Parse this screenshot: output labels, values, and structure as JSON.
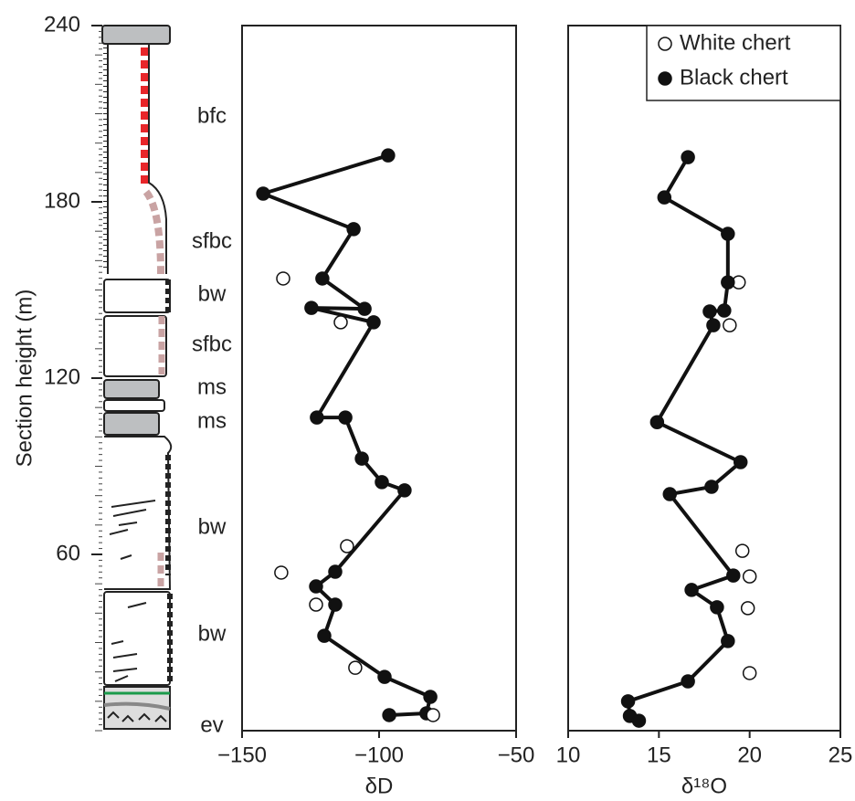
{
  "chart_data": [
    {
      "type": "line",
      "ylabel": "Section height (m)",
      "xlabel": "δD",
      "xlim": [
        -150,
        -50
      ],
      "xticks": [
        {
          "value": -150,
          "label": "−150"
        },
        {
          "value": -100,
          "label": "−100"
        },
        {
          "value": -50,
          "label": "−50"
        }
      ],
      "ylim": [
        0,
        240
      ],
      "yticks": [
        60,
        120,
        180,
        240
      ],
      "series": [
        {
          "color": "#111111",
          "marker": "filled",
          "line": true,
          "x": [
            -96.7,
            -142.3,
            -109.3,
            -120.7,
            -105.3,
            -124.7,
            -102,
            -122.7,
            -112.3,
            -106.3,
            -99,
            -90.7,
            -116,
            -123,
            -116,
            -120,
            -98,
            -81.3,
            -82.7,
            -96.3
          ],
          "y": [
            195.8,
            182.8,
            170.7,
            153.9,
            143.6,
            143.9,
            139,
            106.6,
            106.6,
            92.6,
            84.6,
            81.8,
            54.1,
            49.1,
            42.9,
            32.3,
            18.3,
            11.5,
            5.9,
            5.3
          ]
        },
        {
          "color": "#111111",
          "marker": "open",
          "line": false,
          "x": [
            -135,
            -114,
            -111.7,
            -135.7,
            -123,
            -108.7,
            -80.3
          ],
          "y": [
            153.9,
            139,
            62.8,
            53.8,
            42.9,
            21.4,
            5.3
          ]
        }
      ]
    },
    {
      "type": "line",
      "xlabel": "δ¹⁸O",
      "xlim": [
        10,
        25
      ],
      "xticks": [
        10,
        15,
        20,
        25
      ],
      "ylim": [
        0,
        240
      ],
      "legend": "top-right",
      "series": [
        {
          "name": "White chert",
          "color": "#111111",
          "marker": "open",
          "line": false,
          "x": [
            19.4,
            18.9,
            19.6,
            20,
            19.9,
            20
          ],
          "y": [
            152.6,
            138,
            61.2,
            52.5,
            41.7,
            19.6
          ]
        },
        {
          "name": "Black chert",
          "color": "#111111",
          "marker": "filled",
          "line": true,
          "x": [
            16.6,
            15.3,
            18.8,
            18.8,
            18.6,
            17.8,
            18,
            14.9,
            19.5,
            17.9,
            15.6,
            19.1,
            16.8,
            18.2,
            18.8,
            16.6,
            13.3,
            13.4,
            13.9
          ],
          "y": [
            195.2,
            181.5,
            169.1,
            152.6,
            143,
            142.7,
            138,
            105,
            91.4,
            83,
            80.5,
            52.8,
            47.9,
            42,
            30.5,
            16.8,
            10,
            5,
            3.4
          ]
        }
      ]
    }
  ],
  "column": {
    "units": [
      "bfc",
      "sfbc",
      "bw",
      "sfbc",
      "ms",
      "ms",
      "bw",
      "bw",
      "ev"
    ]
  }
}
